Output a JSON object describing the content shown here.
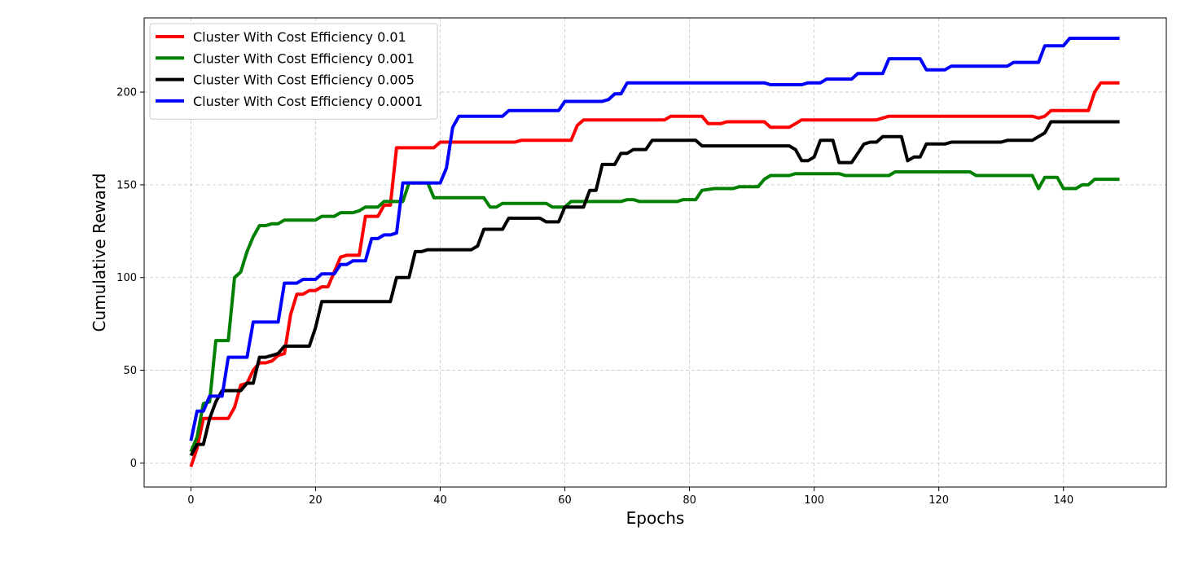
{
  "chart_data": {
    "type": "line",
    "title": "",
    "xlabel": "Epochs",
    "ylabel": "Cumulative Reward",
    "xlim": [
      -7.5,
      156.5
    ],
    "ylim": [
      -13,
      240
    ],
    "xticks": [
      0,
      20,
      40,
      60,
      80,
      100,
      120,
      140
    ],
    "yticks": [
      0,
      50,
      100,
      150,
      200
    ],
    "grid": true,
    "legend_position": "upper-left",
    "series": [
      {
        "name": "Cluster With Cost Efficiency 0.01",
        "color": "#ff0000",
        "points": [
          [
            0,
            -2
          ],
          [
            1,
            8
          ],
          [
            2,
            24
          ],
          [
            6,
            24
          ],
          [
            7,
            30
          ],
          [
            8,
            42
          ],
          [
            9,
            43
          ],
          [
            10,
            50
          ],
          [
            11,
            54
          ],
          [
            12,
            54
          ],
          [
            13,
            55
          ],
          [
            14,
            58
          ],
          [
            15,
            59
          ],
          [
            16,
            80
          ],
          [
            17,
            91
          ],
          [
            18,
            91
          ],
          [
            19,
            93
          ],
          [
            20,
            93
          ],
          [
            21,
            95
          ],
          [
            22,
            95
          ],
          [
            23,
            103
          ],
          [
            24,
            111
          ],
          [
            25,
            112
          ],
          [
            27,
            112
          ],
          [
            28,
            133
          ],
          [
            30,
            133
          ],
          [
            31,
            139
          ],
          [
            32,
            139
          ],
          [
            33,
            170
          ],
          [
            39,
            170
          ],
          [
            40,
            173
          ],
          [
            52,
            173
          ],
          [
            53,
            174
          ],
          [
            61,
            174
          ],
          [
            62,
            182
          ],
          [
            63,
            185
          ],
          [
            72,
            185
          ],
          [
            76,
            185
          ],
          [
            77,
            187
          ],
          [
            82,
            187
          ],
          [
            83,
            183
          ],
          [
            85,
            183
          ],
          [
            86,
            184
          ],
          [
            92,
            184
          ],
          [
            93,
            181
          ],
          [
            95,
            181
          ],
          [
            96,
            181
          ],
          [
            97,
            183
          ],
          [
            98,
            185
          ],
          [
            105,
            185
          ],
          [
            106,
            185
          ],
          [
            110,
            185
          ],
          [
            112,
            187
          ],
          [
            135,
            187
          ],
          [
            136,
            186
          ],
          [
            137,
            187
          ],
          [
            138,
            190
          ],
          [
            144,
            190
          ],
          [
            145,
            200
          ],
          [
            146,
            205
          ],
          [
            149,
            205
          ]
        ]
      },
      {
        "name": "Cluster With Cost Efficiency 0.001",
        "color": "#008000",
        "points": [
          [
            0,
            6
          ],
          [
            1,
            14
          ],
          [
            2,
            32
          ],
          [
            3,
            33
          ],
          [
            4,
            66
          ],
          [
            6,
            66
          ],
          [
            7,
            100
          ],
          [
            8,
            103
          ],
          [
            9,
            114
          ],
          [
            10,
            122
          ],
          [
            11,
            128
          ],
          [
            12,
            128
          ],
          [
            13,
            129
          ],
          [
            14,
            129
          ],
          [
            15,
            131
          ],
          [
            20,
            131
          ],
          [
            21,
            133
          ],
          [
            22,
            133
          ],
          [
            23,
            133
          ],
          [
            24,
            135
          ],
          [
            26,
            135
          ],
          [
            27,
            136
          ],
          [
            28,
            138
          ],
          [
            30,
            138
          ],
          [
            31,
            141
          ],
          [
            34,
            141
          ],
          [
            35,
            151
          ],
          [
            38,
            151
          ],
          [
            39,
            143
          ],
          [
            47,
            143
          ],
          [
            48,
            138
          ],
          [
            49,
            138
          ],
          [
            50,
            140
          ],
          [
            57,
            140
          ],
          [
            58,
            138
          ],
          [
            60,
            138
          ],
          [
            61,
            141
          ],
          [
            67,
            141
          ],
          [
            68,
            141
          ],
          [
            69,
            141
          ],
          [
            70,
            142
          ],
          [
            71,
            142
          ],
          [
            72,
            141
          ],
          [
            78,
            141
          ],
          [
            79,
            142
          ],
          [
            81,
            142
          ],
          [
            82,
            147
          ],
          [
            84,
            148
          ],
          [
            87,
            148
          ],
          [
            88,
            149
          ],
          [
            91,
            149
          ],
          [
            92,
            153
          ],
          [
            93,
            155
          ],
          [
            96,
            155
          ],
          [
            97,
            156
          ],
          [
            104,
            156
          ],
          [
            105,
            155
          ],
          [
            112,
            155
          ],
          [
            113,
            157
          ],
          [
            125,
            157
          ],
          [
            126,
            155
          ],
          [
            135,
            155
          ],
          [
            136,
            148
          ],
          [
            137,
            154
          ],
          [
            139,
            154
          ],
          [
            140,
            148
          ],
          [
            142,
            148
          ],
          [
            143,
            150
          ],
          [
            144,
            150
          ],
          [
            145,
            153
          ],
          [
            149,
            153
          ]
        ]
      },
      {
        "name": "Cluster With Cost Efficiency 0.005",
        "color": "#000000",
        "points": [
          [
            0,
            4
          ],
          [
            1,
            10
          ],
          [
            2,
            10
          ],
          [
            3,
            24
          ],
          [
            4,
            33
          ],
          [
            5,
            39
          ],
          [
            8,
            39
          ],
          [
            9,
            43
          ],
          [
            10,
            43
          ],
          [
            11,
            57
          ],
          [
            12,
            57
          ],
          [
            13,
            58
          ],
          [
            14,
            59
          ],
          [
            15,
            63
          ],
          [
            19,
            63
          ],
          [
            20,
            73
          ],
          [
            21,
            87
          ],
          [
            32,
            87
          ],
          [
            33,
            100
          ],
          [
            35,
            100
          ],
          [
            36,
            114
          ],
          [
            37,
            114
          ],
          [
            38,
            115
          ],
          [
            45,
            115
          ],
          [
            46,
            117
          ],
          [
            47,
            126
          ],
          [
            48,
            126
          ],
          [
            50,
            126
          ],
          [
            51,
            132
          ],
          [
            56,
            132
          ],
          [
            57,
            130
          ],
          [
            59,
            130
          ],
          [
            60,
            138
          ],
          [
            63,
            138
          ],
          [
            64,
            147
          ],
          [
            65,
            147
          ],
          [
            66,
            161
          ],
          [
            68,
            161
          ],
          [
            69,
            167
          ],
          [
            70,
            167
          ],
          [
            71,
            169
          ],
          [
            73,
            169
          ],
          [
            74,
            174
          ],
          [
            81,
            174
          ],
          [
            82,
            171
          ],
          [
            96,
            171
          ],
          [
            97,
            169
          ],
          [
            98,
            163
          ],
          [
            99,
            163
          ],
          [
            100,
            165
          ],
          [
            101,
            174
          ],
          [
            103,
            174
          ],
          [
            104,
            162
          ],
          [
            106,
            162
          ],
          [
            107,
            167
          ],
          [
            108,
            172
          ],
          [
            109,
            173
          ],
          [
            110,
            173
          ],
          [
            111,
            176
          ],
          [
            114,
            176
          ],
          [
            115,
            163
          ],
          [
            116,
            165
          ],
          [
            117,
            165
          ],
          [
            118,
            172
          ],
          [
            121,
            172
          ],
          [
            122,
            173
          ],
          [
            130,
            173
          ],
          [
            131,
            174
          ],
          [
            135,
            174
          ],
          [
            136,
            176
          ],
          [
            137,
            178
          ],
          [
            138,
            184
          ],
          [
            149,
            184
          ]
        ]
      },
      {
        "name": "Cluster With Cost Efficiency 0.0001",
        "color": "#0000ff",
        "points": [
          [
            0,
            12
          ],
          [
            1,
            28
          ],
          [
            2,
            28
          ],
          [
            3,
            36
          ],
          [
            5,
            36
          ],
          [
            6,
            57
          ],
          [
            9,
            57
          ],
          [
            10,
            76
          ],
          [
            14,
            76
          ],
          [
            15,
            97
          ],
          [
            17,
            97
          ],
          [
            18,
            99
          ],
          [
            19,
            99
          ],
          [
            20,
            99
          ],
          [
            21,
            102
          ],
          [
            23,
            102
          ],
          [
            24,
            107
          ],
          [
            25,
            107
          ],
          [
            26,
            109
          ],
          [
            28,
            109
          ],
          [
            29,
            121
          ],
          [
            30,
            121
          ],
          [
            31,
            123
          ],
          [
            32,
            123
          ],
          [
            33,
            124
          ],
          [
            34,
            151
          ],
          [
            40,
            151
          ],
          [
            41,
            159
          ],
          [
            42,
            181
          ],
          [
            43,
            187
          ],
          [
            50,
            187
          ],
          [
            51,
            190
          ],
          [
            59,
            190
          ],
          [
            60,
            195
          ],
          [
            66,
            195
          ],
          [
            67,
            196
          ],
          [
            68,
            199
          ],
          [
            69,
            199
          ],
          [
            70,
            205
          ],
          [
            92,
            205
          ],
          [
            93,
            204
          ],
          [
            98,
            204
          ],
          [
            99,
            205
          ],
          [
            101,
            205
          ],
          [
            102,
            207
          ],
          [
            106,
            207
          ],
          [
            107,
            210
          ],
          [
            111,
            210
          ],
          [
            112,
            218
          ],
          [
            117,
            218
          ],
          [
            118,
            212
          ],
          [
            121,
            212
          ],
          [
            122,
            214
          ],
          [
            131,
            214
          ],
          [
            132,
            216
          ],
          [
            136,
            216
          ],
          [
            137,
            225
          ],
          [
            140,
            225
          ],
          [
            141,
            229
          ],
          [
            149,
            229
          ]
        ]
      }
    ]
  }
}
